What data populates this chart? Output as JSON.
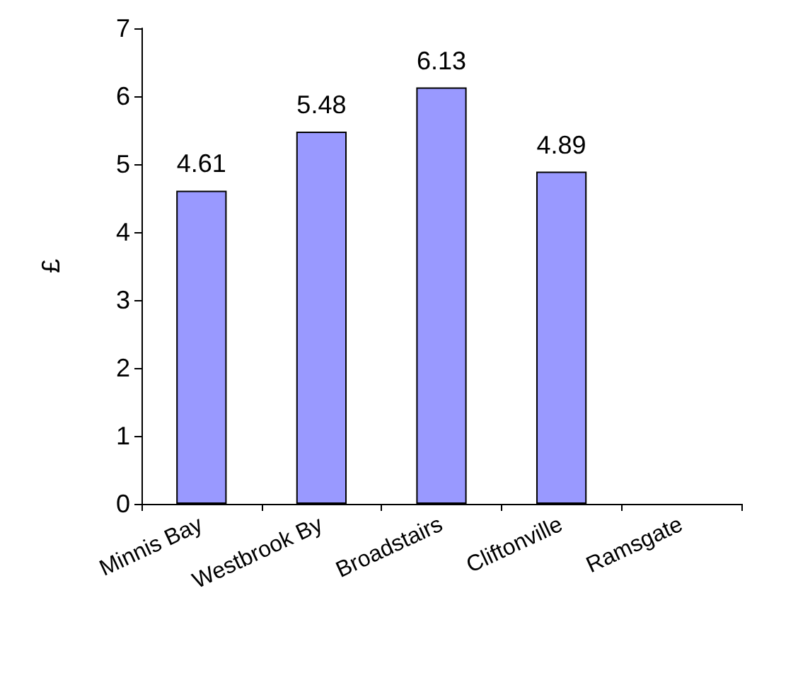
{
  "chart_data": {
    "type": "bar",
    "ylabel": "£",
    "categories": [
      "Minnis Bay",
      "Westbrook By",
      "Broadstairs",
      "Cliftonville",
      "Ramsgate"
    ],
    "values": [
      4.61,
      5.48,
      6.13,
      4.89,
      null
    ],
    "color": "#9999ff",
    "ylim": [
      0,
      7
    ],
    "yticks": [
      0,
      1,
      2,
      3,
      4,
      5,
      6,
      7
    ],
    "grid": false,
    "data_labels": true
  }
}
